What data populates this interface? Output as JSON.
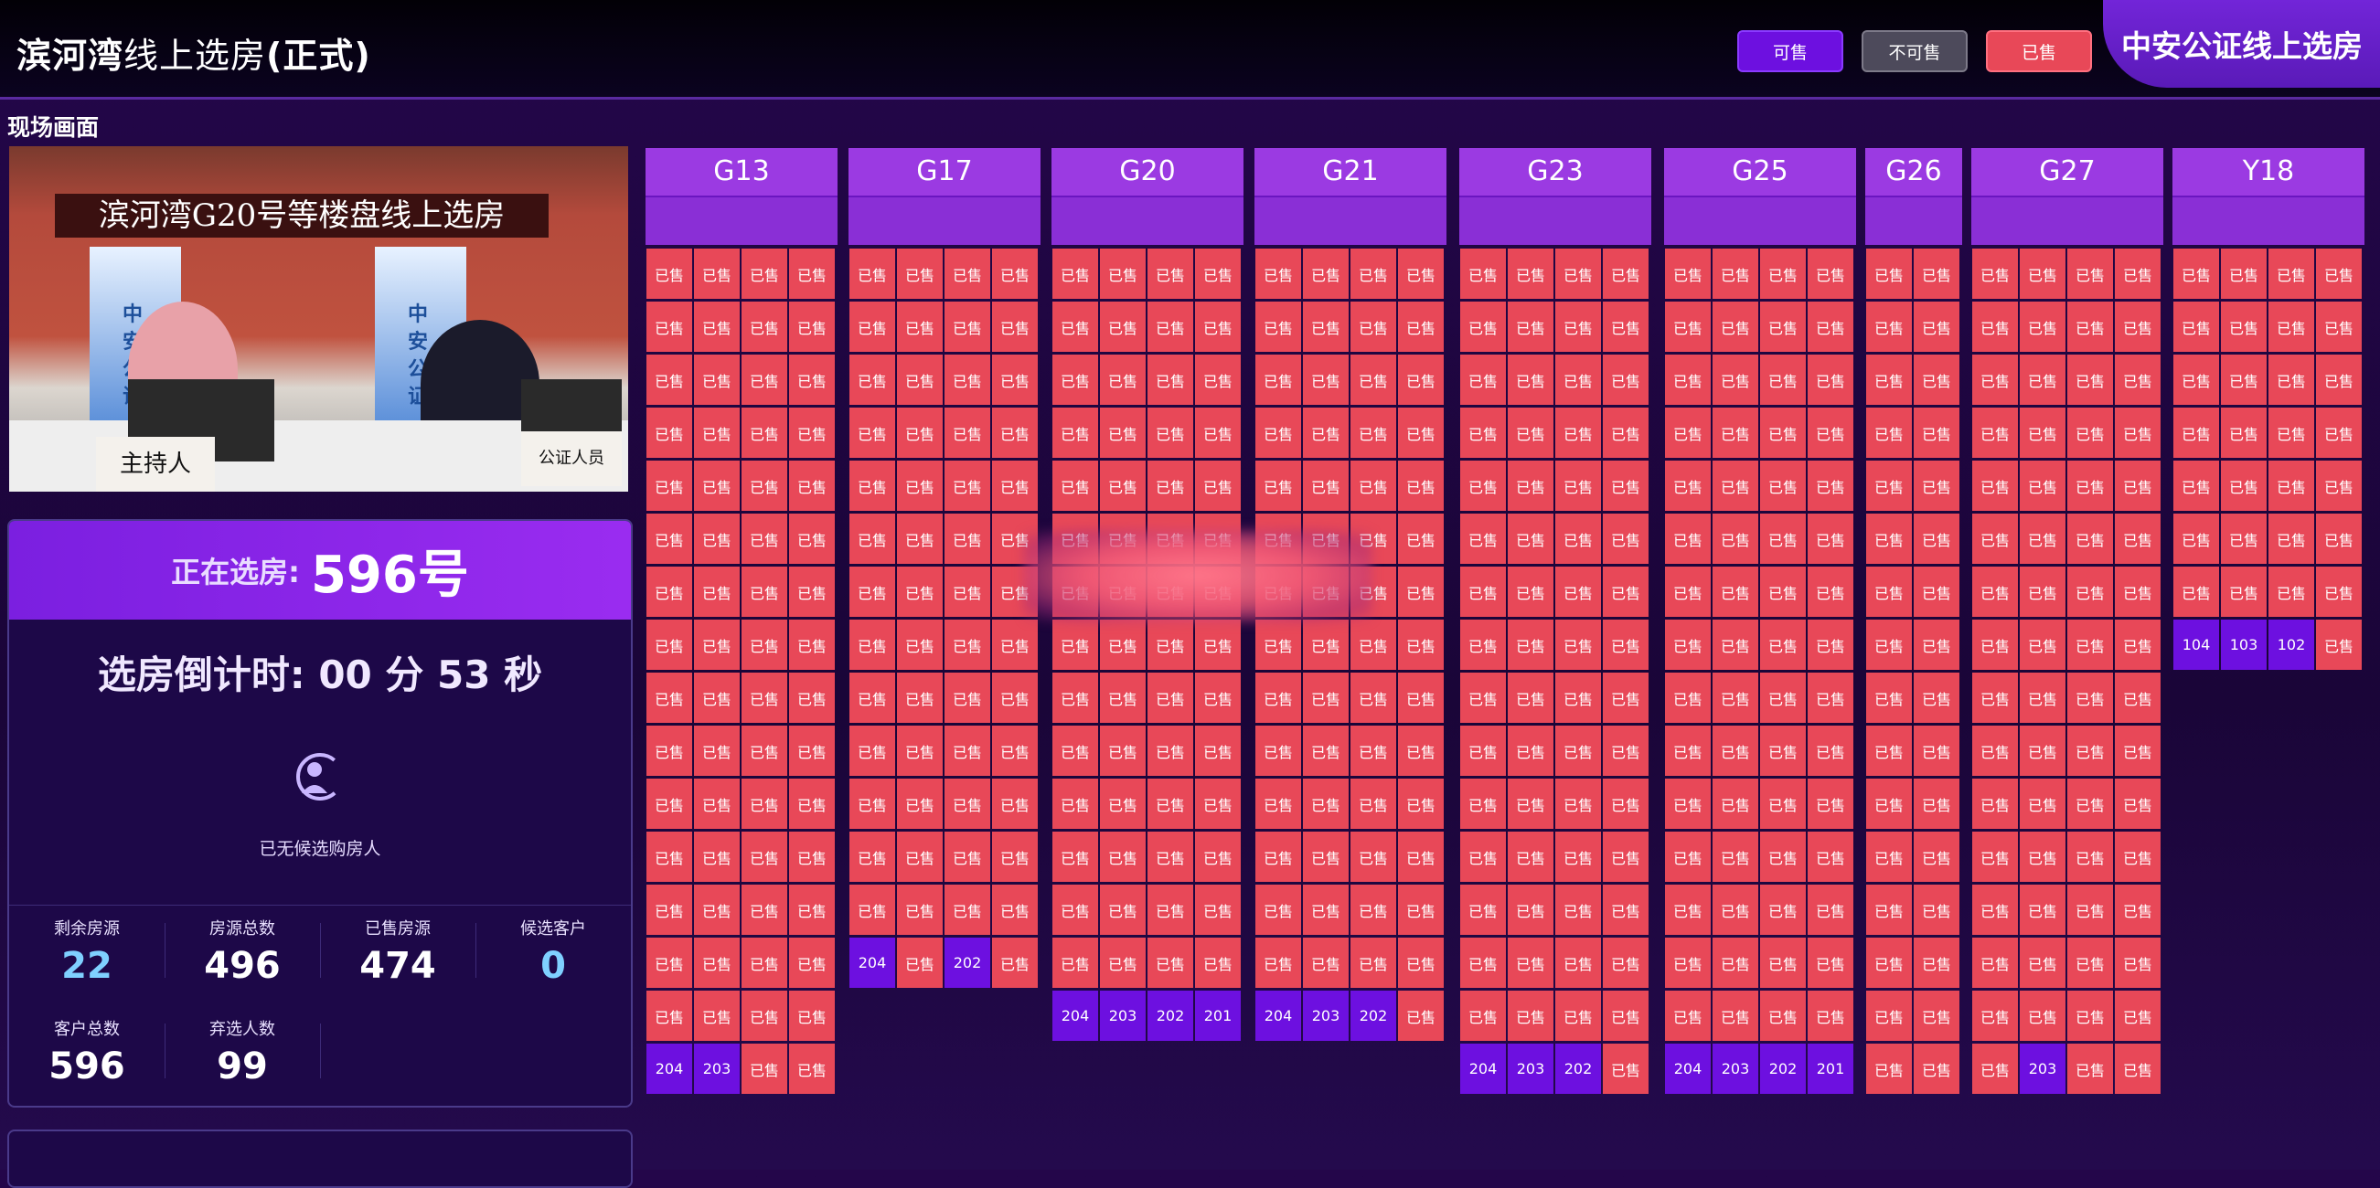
{
  "header": {
    "title_bold": "滨河湾",
    "title_normal": "线上选房",
    "title_suffix": "(正式)",
    "legend": {
      "available": "可售",
      "unavailable": "不可售",
      "sold": "已售"
    },
    "notary_banner": "中安公证线上选房"
  },
  "live": {
    "label": "现场画面",
    "banner_text": "滨河湾G20号等楼盘线上选房",
    "rollup_text": "中安公证",
    "nameplate_host": "主持人",
    "nameplate_notary": "公证人员"
  },
  "selection": {
    "current_label": "正在选房:",
    "current_value": "596号",
    "countdown": "选房倒计时: 00 分 53 秒",
    "no_candidate": "已无候选购房人",
    "stats": [
      {
        "label": "剩余房源",
        "value": "22",
        "color": "#7fd0ff"
      },
      {
        "label": "房源总数",
        "value": "496",
        "color": "#ffffff"
      },
      {
        "label": "已售房源",
        "value": "474",
        "color": "#ffffff"
      },
      {
        "label": "候选客户",
        "value": "0",
        "color": "#7fd0ff"
      },
      {
        "label": "客户总数",
        "value": "596",
        "color": "#ffffff"
      },
      {
        "label": "弃选人数",
        "value": "99",
        "color": "#ffffff"
      }
    ]
  },
  "sold_label": "已售",
  "buildings": [
    {
      "name": "G13",
      "cols": 4,
      "rows": [
        [
          "已售",
          "已售",
          "已售",
          "已售"
        ],
        [
          "已售",
          "已售",
          "已售",
          "已售"
        ],
        [
          "已售",
          "已售",
          "已售",
          "已售"
        ],
        [
          "已售",
          "已售",
          "已售",
          "已售"
        ],
        [
          "已售",
          "已售",
          "已售",
          "已售"
        ],
        [
          "已售",
          "已售",
          "已售",
          "已售"
        ],
        [
          "已售",
          "已售",
          "已售",
          "已售"
        ],
        [
          "已售",
          "已售",
          "已售",
          "已售"
        ],
        [
          "已售",
          "已售",
          "已售",
          "已售"
        ],
        [
          "已售",
          "已售",
          "已售",
          "已售"
        ],
        [
          "已售",
          "已售",
          "已售",
          "已售"
        ],
        [
          "已售",
          "已售",
          "已售",
          "已售"
        ],
        [
          "已售",
          "已售",
          "已售",
          "已售"
        ],
        [
          "已售",
          "已售",
          "已售",
          "已售"
        ],
        [
          "已售",
          "已售",
          "已售",
          "已售"
        ],
        [
          "204",
          "203",
          "已售",
          "已售"
        ]
      ]
    },
    {
      "name": "G17",
      "cols": 4,
      "rows": [
        [
          "已售",
          "已售",
          "已售",
          "已售"
        ],
        [
          "已售",
          "已售",
          "已售",
          "已售"
        ],
        [
          "已售",
          "已售",
          "已售",
          "已售"
        ],
        [
          "已售",
          "已售",
          "已售",
          "已售"
        ],
        [
          "已售",
          "已售",
          "已售",
          "已售"
        ],
        [
          "已售",
          "已售",
          "已售",
          "已售"
        ],
        [
          "已售",
          "已售",
          "已售",
          "已售"
        ],
        [
          "已售",
          "已售",
          "已售",
          "已售"
        ],
        [
          "已售",
          "已售",
          "已售",
          "已售"
        ],
        [
          "已售",
          "已售",
          "已售",
          "已售"
        ],
        [
          "已售",
          "已售",
          "已售",
          "已售"
        ],
        [
          "已售",
          "已售",
          "已售",
          "已售"
        ],
        [
          "已售",
          "已售",
          "已售",
          "已售"
        ],
        [
          "204",
          "已售",
          "202",
          "已售"
        ]
      ]
    },
    {
      "name": "G20",
      "cols": 4,
      "rows": [
        [
          "已售",
          "已售",
          "已售",
          "已售"
        ],
        [
          "已售",
          "已售",
          "已售",
          "已售"
        ],
        [
          "已售",
          "已售",
          "已售",
          "已售"
        ],
        [
          "已售",
          "已售",
          "已售",
          "已售"
        ],
        [
          "已售",
          "已售",
          "已售",
          "已售"
        ],
        [
          "已售",
          "已售",
          "已售",
          "已售"
        ],
        [
          "已售",
          "已售",
          "已售",
          "已售"
        ],
        [
          "已售",
          "已售",
          "已售",
          "已售"
        ],
        [
          "已售",
          "已售",
          "已售",
          "已售"
        ],
        [
          "已售",
          "已售",
          "已售",
          "已售"
        ],
        [
          "已售",
          "已售",
          "已售",
          "已售"
        ],
        [
          "已售",
          "已售",
          "已售",
          "已售"
        ],
        [
          "已售",
          "已售",
          "已售",
          "已售"
        ],
        [
          "已售",
          "已售",
          "已售",
          "已售"
        ],
        [
          "204",
          "203",
          "202",
          "201"
        ]
      ]
    },
    {
      "name": "G21",
      "cols": 4,
      "rows": [
        [
          "已售",
          "已售",
          "已售",
          "已售"
        ],
        [
          "已售",
          "已售",
          "已售",
          "已售"
        ],
        [
          "已售",
          "已售",
          "已售",
          "已售"
        ],
        [
          "已售",
          "已售",
          "已售",
          "已售"
        ],
        [
          "已售",
          "已售",
          "已售",
          "已售"
        ],
        [
          "已售",
          "已售",
          "已售",
          "已售"
        ],
        [
          "已售",
          "已售",
          "已售",
          "已售"
        ],
        [
          "已售",
          "已售",
          "已售",
          "已售"
        ],
        [
          "已售",
          "已售",
          "已售",
          "已售"
        ],
        [
          "已售",
          "已售",
          "已售",
          "已售"
        ],
        [
          "已售",
          "已售",
          "已售",
          "已售"
        ],
        [
          "已售",
          "已售",
          "已售",
          "已售"
        ],
        [
          "已售",
          "已售",
          "已售",
          "已售"
        ],
        [
          "已售",
          "已售",
          "已售",
          "已售"
        ],
        [
          "204",
          "203",
          "202",
          "已售"
        ]
      ]
    },
    {
      "name": "G23",
      "cols": 4,
      "rows": [
        [
          "已售",
          "已售",
          "已售",
          "已售"
        ],
        [
          "已售",
          "已售",
          "已售",
          "已售"
        ],
        [
          "已售",
          "已售",
          "已售",
          "已售"
        ],
        [
          "已售",
          "已售",
          "已售",
          "已售"
        ],
        [
          "已售",
          "已售",
          "已售",
          "已售"
        ],
        [
          "已售",
          "已售",
          "已售",
          "已售"
        ],
        [
          "已售",
          "已售",
          "已售",
          "已售"
        ],
        [
          "已售",
          "已售",
          "已售",
          "已售"
        ],
        [
          "已售",
          "已售",
          "已售",
          "已售"
        ],
        [
          "已售",
          "已售",
          "已售",
          "已售"
        ],
        [
          "已售",
          "已售",
          "已售",
          "已售"
        ],
        [
          "已售",
          "已售",
          "已售",
          "已售"
        ],
        [
          "已售",
          "已售",
          "已售",
          "已售"
        ],
        [
          "已售",
          "已售",
          "已售",
          "已售"
        ],
        [
          "已售",
          "已售",
          "已售",
          "已售"
        ],
        [
          "204",
          "203",
          "202",
          "已售"
        ]
      ]
    },
    {
      "name": "G25",
      "cols": 4,
      "rows": [
        [
          "已售",
          "已售",
          "已售",
          "已售"
        ],
        [
          "已售",
          "已售",
          "已售",
          "已售"
        ],
        [
          "已售",
          "已售",
          "已售",
          "已售"
        ],
        [
          "已售",
          "已售",
          "已售",
          "已售"
        ],
        [
          "已售",
          "已售",
          "已售",
          "已售"
        ],
        [
          "已售",
          "已售",
          "已售",
          "已售"
        ],
        [
          "已售",
          "已售",
          "已售",
          "已售"
        ],
        [
          "已售",
          "已售",
          "已售",
          "已售"
        ],
        [
          "已售",
          "已售",
          "已售",
          "已售"
        ],
        [
          "已售",
          "已售",
          "已售",
          "已售"
        ],
        [
          "已售",
          "已售",
          "已售",
          "已售"
        ],
        [
          "已售",
          "已售",
          "已售",
          "已售"
        ],
        [
          "已售",
          "已售",
          "已售",
          "已售"
        ],
        [
          "已售",
          "已售",
          "已售",
          "已售"
        ],
        [
          "已售",
          "已售",
          "已售",
          "已售"
        ],
        [
          "204",
          "203",
          "202",
          "201"
        ]
      ]
    },
    {
      "name": "G26",
      "cols": 2,
      "rows": [
        [
          "已售",
          "已售"
        ],
        [
          "已售",
          "已售"
        ],
        [
          "已售",
          "已售"
        ],
        [
          "已售",
          "已售"
        ],
        [
          "已售",
          "已售"
        ],
        [
          "已售",
          "已售"
        ],
        [
          "已售",
          "已售"
        ],
        [
          "已售",
          "已售"
        ],
        [
          "已售",
          "已售"
        ],
        [
          "已售",
          "已售"
        ],
        [
          "已售",
          "已售"
        ],
        [
          "已售",
          "已售"
        ],
        [
          "已售",
          "已售"
        ],
        [
          "已售",
          "已售"
        ],
        [
          "已售",
          "已售"
        ],
        [
          "已售",
          "已售"
        ]
      ]
    },
    {
      "name": "G27",
      "cols": 4,
      "rows": [
        [
          "已售",
          "已售",
          "已售",
          "已售"
        ],
        [
          "已售",
          "已售",
          "已售",
          "已售"
        ],
        [
          "已售",
          "已售",
          "已售",
          "已售"
        ],
        [
          "已售",
          "已售",
          "已售",
          "已售"
        ],
        [
          "已售",
          "已售",
          "已售",
          "已售"
        ],
        [
          "已售",
          "已售",
          "已售",
          "已售"
        ],
        [
          "已售",
          "已售",
          "已售",
          "已售"
        ],
        [
          "已售",
          "已售",
          "已售",
          "已售"
        ],
        [
          "已售",
          "已售",
          "已售",
          "已售"
        ],
        [
          "已售",
          "已售",
          "已售",
          "已售"
        ],
        [
          "已售",
          "已售",
          "已售",
          "已售"
        ],
        [
          "已售",
          "已售",
          "已售",
          "已售"
        ],
        [
          "已售",
          "已售",
          "已售",
          "已售"
        ],
        [
          "已售",
          "已售",
          "已售",
          "已售"
        ],
        [
          "已售",
          "已售",
          "已售",
          "已售"
        ],
        [
          "已售",
          "203",
          "已售",
          "已售"
        ]
      ]
    },
    {
      "name": "Y18",
      "cols": 4,
      "rows": [
        [
          "已售",
          "已售",
          "已售",
          "已售"
        ],
        [
          "已售",
          "已售",
          "已售",
          "已售"
        ],
        [
          "已售",
          "已售",
          "已售",
          "已售"
        ],
        [
          "已售",
          "已售",
          "已售",
          "已售"
        ],
        [
          "已售",
          "已售",
          "已售",
          "已售"
        ],
        [
          "已售",
          "已售",
          "已售",
          "已售"
        ],
        [
          "已售",
          "已售",
          "已售",
          "已售"
        ],
        [
          "104",
          "103",
          "102",
          "已售"
        ]
      ]
    }
  ],
  "colors": {
    "sold": "#e84858",
    "available": "#6d10e0",
    "header_purple": "#8a2fd6"
  }
}
